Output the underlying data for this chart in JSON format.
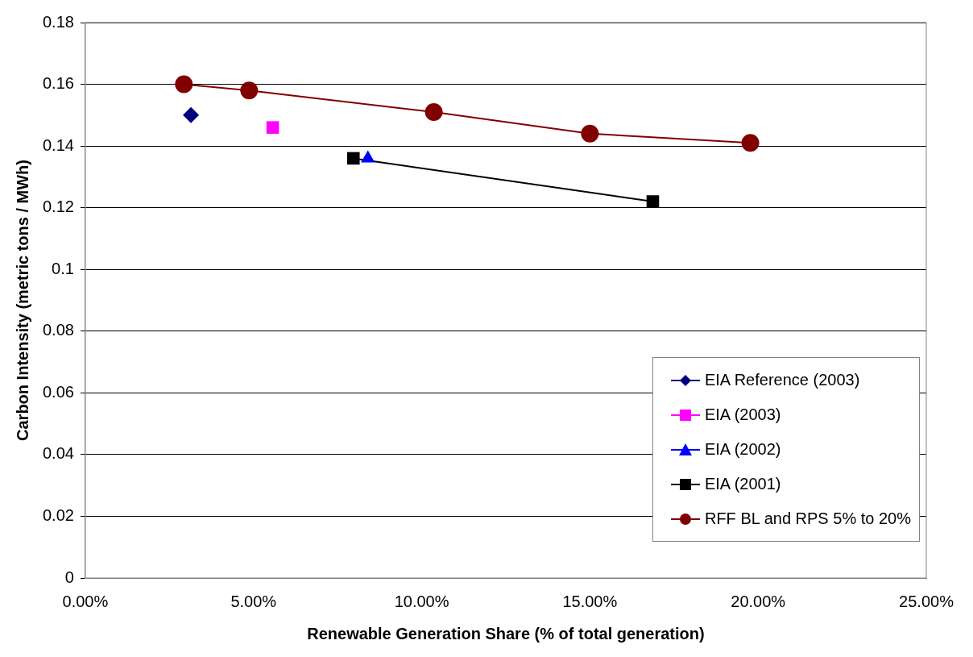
{
  "chart_data": {
    "type": "line",
    "xlabel": "Renewable Generation Share (% of total generation)",
    "ylabel": "Carbon Intensity (metric tons / MWh)",
    "xlim": [
      0,
      0.25
    ],
    "xticks": [
      {
        "value": 0,
        "label": "0.00%"
      },
      {
        "value": 0.05,
        "label": "5.00%"
      },
      {
        "value": 0.1,
        "label": "10.00%"
      },
      {
        "value": 0.15,
        "label": "15.00%"
      },
      {
        "value": 0.2,
        "label": "20.00%"
      },
      {
        "value": 0.25,
        "label": "25.00%"
      }
    ],
    "ylim": [
      0,
      0.18
    ],
    "yticks": [
      0,
      0.02,
      0.04,
      0.06,
      0.08,
      0.1,
      0.12,
      0.14,
      0.16,
      0.18
    ],
    "grid": "y",
    "legend": "bottom right",
    "series": [
      {
        "name": "EIA Reference (2003)",
        "color": "#000080",
        "marker": "diamond",
        "x": [
          0.0314
        ],
        "values": [
          0.15
        ]
      },
      {
        "name": "EIA (2003)",
        "color": "#ff00ff",
        "marker": "square",
        "x": [
          0.0557
        ],
        "values": [
          0.146
        ]
      },
      {
        "name": "EIA (2002)",
        "color": "#0000ff",
        "marker": "triangle",
        "x": [
          0.084
        ],
        "values": [
          0.136
        ]
      },
      {
        "name": "EIA (2001)",
        "color": "#000000",
        "marker": "square",
        "x": [
          0.0797,
          0.1687
        ],
        "values": [
          0.136,
          0.122
        ]
      },
      {
        "name": "RFF BL and RPS 5% to 20%",
        "color": "#800000",
        "marker": "circle",
        "x": [
          0.0293,
          0.0487,
          0.1036,
          0.15,
          0.1977
        ],
        "values": [
          0.16,
          0.158,
          0.151,
          0.144,
          0.141
        ]
      }
    ]
  }
}
